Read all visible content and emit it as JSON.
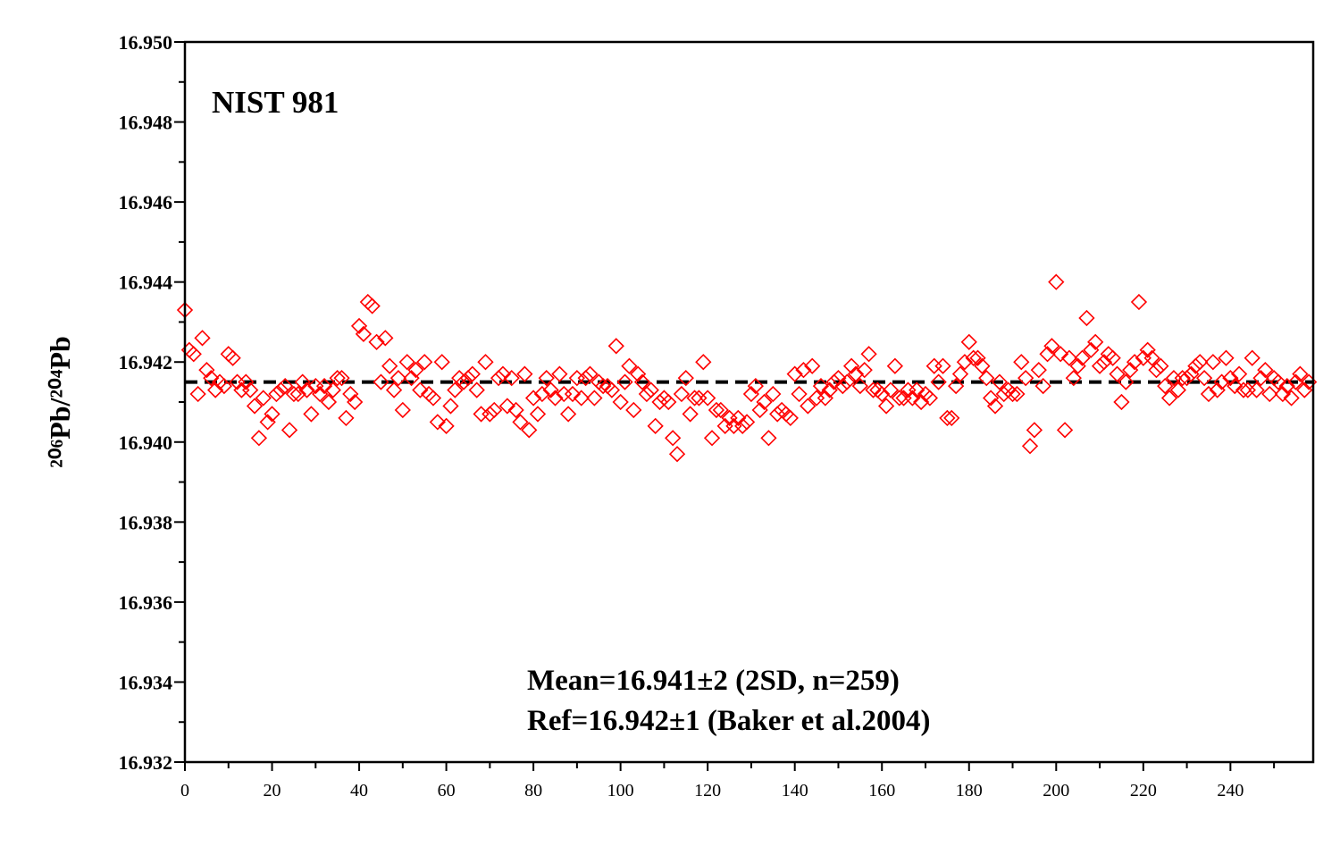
{
  "chart_data": {
    "type": "scatter",
    "ylabel": "²⁰⁶Pb/²⁰⁴Pb",
    "annotations": [
      "NIST 981",
      "Mean=16.941±2 (2SD, n=259)",
      "Ref=16.942±1 (Baker et al.2004)"
    ],
    "color": "#ff0000",
    "marker": "diamond",
    "hline": 16.9415,
    "xlim": [
      0,
      259
    ],
    "xticks": [
      0,
      20,
      40,
      60,
      80,
      100,
      120,
      140,
      160,
      180,
      200,
      220,
      240
    ],
    "ylim": [
      16.932,
      16.95
    ],
    "yticks": [
      16.932,
      16.934,
      16.936,
      16.938,
      {
        "value": 16.94,
        "label": "16.940"
      },
      16.942,
      16.944,
      16.946,
      16.948,
      {
        "value": 16.95,
        "label": "16.950"
      }
    ],
    "x": [
      0,
      1,
      2,
      3,
      4,
      5,
      6,
      7,
      8,
      9,
      10,
      11,
      12,
      13,
      14,
      15,
      16,
      17,
      18,
      19,
      20,
      21,
      22,
      23,
      24,
      25,
      26,
      27,
      28,
      29,
      30,
      31,
      32,
      33,
      34,
      35,
      36,
      37,
      38,
      39,
      40,
      41,
      42,
      43,
      44,
      45,
      46,
      47,
      48,
      49,
      50,
      51,
      52,
      53,
      54,
      55,
      56,
      57,
      58,
      59,
      60,
      61,
      62,
      63,
      64,
      65,
      66,
      67,
      68,
      69,
      70,
      71,
      72,
      73,
      74,
      75,
      76,
      77,
      78,
      79,
      80,
      81,
      82,
      83,
      84,
      85,
      86,
      87,
      88,
      89,
      90,
      91,
      92,
      93,
      94,
      95,
      96,
      97,
      98,
      99,
      100,
      101,
      102,
      103,
      104,
      105,
      106,
      107,
      108,
      109,
      110,
      111,
      112,
      113,
      114,
      115,
      116,
      117,
      118,
      119,
      120,
      121,
      122,
      123,
      124,
      125,
      126,
      127,
      128,
      129,
      130,
      131,
      132,
      133,
      134,
      135,
      136,
      137,
      138,
      139,
      140,
      141,
      142,
      143,
      144,
      145,
      146,
      147,
      148,
      149,
      150,
      151,
      152,
      153,
      154,
      155,
      156,
      157,
      158,
      159,
      160,
      161,
      162,
      163,
      164,
      165,
      166,
      167,
      168,
      169,
      170,
      171,
      172,
      173,
      174,
      175,
      176,
      177,
      178,
      179,
      180,
      181,
      182,
      183,
      184,
      185,
      186,
      187,
      188,
      189,
      190,
      191,
      192,
      193,
      194,
      195,
      196,
      197,
      198,
      199,
      200,
      201,
      202,
      203,
      204,
      205,
      206,
      207,
      208,
      209,
      210,
      211,
      212,
      213,
      214,
      215,
      216,
      217,
      218,
      219,
      220,
      221,
      222,
      223,
      224,
      225,
      226,
      227,
      228,
      229,
      230,
      231,
      232,
      233,
      234,
      235,
      236,
      237,
      238,
      239,
      240,
      241,
      242,
      243,
      244,
      245,
      246,
      247,
      248,
      249,
      250,
      251,
      252,
      253,
      254,
      255,
      256,
      257,
      258
    ],
    "values": [
      16.9433,
      16.9423,
      16.9422,
      16.9412,
      16.9426,
      16.9418,
      16.9416,
      16.9413,
      16.9415,
      16.9414,
      16.9422,
      16.9421,
      16.9415,
      16.9413,
      16.9415,
      16.9413,
      16.9409,
      16.9401,
      16.9411,
      16.9405,
      16.9407,
      16.9412,
      16.9413,
      16.9414,
      16.9403,
      16.9412,
      16.9412,
      16.9415,
      16.9413,
      16.9407,
      16.9414,
      16.9412,
      16.9414,
      16.941,
      16.9413,
      16.9416,
      16.9416,
      16.9406,
      16.9412,
      16.941,
      16.9429,
      16.9427,
      16.9435,
      16.9434,
      16.9425,
      16.9415,
      16.9426,
      16.9419,
      16.9413,
      16.9416,
      16.9408,
      16.942,
      16.9416,
      16.9418,
      16.9413,
      16.942,
      16.9412,
      16.9411,
      16.9405,
      16.942,
      16.9404,
      16.9409,
      16.9413,
      16.9416,
      16.9415,
      16.9416,
      16.9417,
      16.9413,
      16.9407,
      16.942,
      16.9407,
      16.9408,
      16.9416,
      16.9417,
      16.9409,
      16.9416,
      16.9408,
      16.9405,
      16.9417,
      16.9403,
      16.9411,
      16.9407,
      16.9412,
      16.9416,
      16.9413,
      16.9411,
      16.9417,
      16.9412,
      16.9407,
      16.9412,
      16.9416,
      16.9411,
      16.9416,
      16.9417,
      16.9411,
      16.9415,
      16.9414,
      16.9414,
      16.9413,
      16.9424,
      16.941,
      16.9415,
      16.9419,
      16.9408,
      16.9417,
      16.9415,
      16.9412,
      16.9413,
      16.9404,
      16.941,
      16.9411,
      16.941,
      16.9401,
      16.9397,
      16.9412,
      16.9416,
      16.9407,
      16.9411,
      16.9411,
      16.942,
      16.9411,
      16.9401,
      16.9408,
      16.9408,
      16.9404,
      16.9406,
      16.9404,
      16.9406,
      16.9404,
      16.9405,
      16.9412,
      16.9414,
      16.9408,
      16.941,
      16.9401,
      16.9412,
      16.9407,
      16.9408,
      16.9407,
      16.9406,
      16.9417,
      16.9412,
      16.9418,
      16.9409,
      16.9419,
      16.9411,
      16.9414,
      16.9411,
      16.9413,
      16.9415,
      16.9416,
      16.9414,
      16.9415,
      16.9419,
      16.9417,
      16.9414,
      16.9418,
      16.9422,
      16.9413,
      16.9413,
      16.9412,
      16.9409,
      16.9413,
      16.9419,
      16.9411,
      16.9411,
      16.9413,
      16.9411,
      16.9413,
      16.941,
      16.9412,
      16.9411,
      16.9419,
      16.9415,
      16.9419,
      16.9406,
      16.9406,
      16.9414,
      16.9417,
      16.942,
      16.9425,
      16.9421,
      16.9421,
      16.9419,
      16.9416,
      16.9411,
      16.9409,
      16.9415,
      16.9412,
      16.9413,
      16.9412,
      16.9412,
      16.942,
      16.9416,
      16.9399,
      16.9403,
      16.9418,
      16.9414,
      16.9422,
      16.9424,
      16.944,
      16.9422,
      16.9403,
      16.9421,
      16.9416,
      16.9419,
      16.9421,
      16.9431,
      16.9423,
      16.9425,
      16.9419,
      16.942,
      16.9422,
      16.9421,
      16.9417,
      16.941,
      16.9415,
      16.9418,
      16.942,
      16.9435,
      16.9421,
      16.9423,
      16.9421,
      16.9418,
      16.9419,
      16.9414,
      16.9411,
      16.9416,
      16.9413,
      16.9416,
      16.9416,
      16.9417,
      16.9419,
      16.942,
      16.9416,
      16.9412,
      16.942,
      16.9413,
      16.9415,
      16.9421,
      16.9416,
      16.9414,
      16.9417,
      16.9413,
      16.9413,
      16.9421,
      16.9413,
      16.9416,
      16.9418,
      16.9412,
      16.9416,
      16.9415,
      16.9412,
      16.9414,
      16.9411,
      16.9415,
      16.9417,
      16.9413,
      16.9415
    ]
  }
}
